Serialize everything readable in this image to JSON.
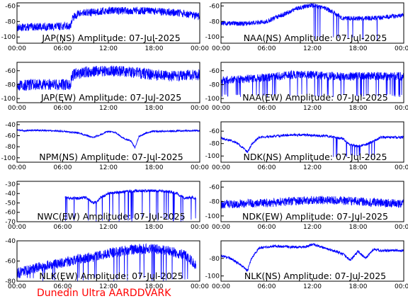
{
  "credit": "Dunedin Ultra AARDDVARK",
  "colors": {
    "trace": "#0000ff",
    "axes": "#000000",
    "credit": "#ff0000",
    "background": "#ffffff"
  },
  "x_ticks": [
    "00:00",
    "06:00",
    "12:00",
    "18:00",
    "00:00"
  ],
  "chart_data": [
    {
      "type": "line",
      "title": "JAP(NS) Amplitude: 07-Jul-2025",
      "x_ticks": [
        "00:00",
        "06:00",
        "12:00",
        "18:00",
        "00:00"
      ],
      "xlim": [
        0,
        24
      ],
      "ylim": [
        -108,
        -56
      ],
      "y_ticks": [
        -100,
        -80,
        -60
      ],
      "series": [
        {
          "x": [
            0,
            2,
            4,
            6,
            7,
            7.3,
            8,
            10,
            12,
            14,
            16,
            18,
            20,
            22,
            24
          ],
          "y": [
            -88,
            -87,
            -87,
            -86,
            -86,
            -76,
            -70,
            -68,
            -66,
            -66,
            -66,
            -67,
            -68,
            -70,
            -74
          ],
          "noise": 5
        }
      ]
    },
    {
      "type": "line",
      "title": "NAA(NS) Amplitude: 07-Jul-2025",
      "x_ticks": [
        "00:00",
        "06:00",
        "12:00",
        "18:00",
        "00:00"
      ],
      "xlim": [
        0,
        24
      ],
      "ylim": [
        -108,
        -56
      ],
      "y_ticks": [
        -100,
        -80,
        -60
      ],
      "series": [
        {
          "x": [
            0,
            2,
            4,
            6,
            8,
            10,
            12,
            14,
            16,
            18,
            20,
            22,
            24
          ],
          "y": [
            -82,
            -83,
            -82,
            -80,
            -72,
            -63,
            -59,
            -64,
            -76,
            -76,
            -76,
            -74,
            -72
          ],
          "noise": 3
        }
      ],
      "dips": {
        "from": 12,
        "to": 21,
        "to_value": -104
      }
    },
    {
      "type": "line",
      "title": "JAP(EW) Amplitude: 07-Jul-2025",
      "x_ticks": [
        "00:00",
        "06:00",
        "12:00",
        "18:00",
        "00:00"
      ],
      "xlim": [
        0,
        24
      ],
      "ylim": [
        -106,
        -48
      ],
      "y_ticks": [
        -100,
        -80,
        -60
      ],
      "series": [
        {
          "x": [
            0,
            2,
            4,
            6,
            7,
            7.3,
            9,
            12,
            15,
            18,
            21,
            22.5,
            24
          ],
          "y": [
            -82,
            -80,
            -80,
            -80,
            -80,
            -66,
            -62,
            -60,
            -62,
            -66,
            -68,
            -66,
            -66
          ],
          "noise": 8
        }
      ]
    },
    {
      "type": "line",
      "title": "NAA(EW) Amplitude: 07-Jul-2025",
      "x_ticks": [
        "00:00",
        "06:00",
        "12:00",
        "18:00",
        "00:00"
      ],
      "xlim": [
        0,
        24
      ],
      "ylim": [
        -106,
        -48
      ],
      "y_ticks": [
        -100,
        -80,
        -60
      ],
      "series": [
        {
          "x": [
            0,
            3,
            6,
            9,
            12,
            15,
            18,
            21,
            24
          ],
          "y": [
            -74,
            -72,
            -70,
            -66,
            -66,
            -68,
            -68,
            -68,
            -68
          ],
          "noise": 6
        }
      ],
      "dips": {
        "from": 0,
        "to": 24,
        "to_value": -98
      }
    },
    {
      "type": "line",
      "title": "NPM(NS) Amplitude: 07-Jul-2025",
      "x_ticks": [
        "00:00",
        "06:00",
        "12:00",
        "18:00",
        "00:00"
      ],
      "xlim": [
        0,
        24
      ],
      "ylim": [
        -108,
        -35
      ],
      "y_ticks": [
        -100,
        -80,
        -60,
        -40
      ],
      "series": [
        {
          "x": [
            0,
            1,
            2,
            4,
            6,
            8,
            10,
            11,
            12,
            13,
            14,
            15,
            15.5,
            16,
            17,
            18,
            20,
            22,
            24
          ],
          "y": [
            -50,
            -51,
            -50,
            -51,
            -52,
            -55,
            -63,
            -58,
            -52,
            -55,
            -65,
            -70,
            -82,
            -62,
            -55,
            -52,
            -52,
            -51,
            -51
          ],
          "noise": 1.5
        }
      ]
    },
    {
      "type": "line",
      "title": "NDK(NS) Amplitude: 07-Jul-2025",
      "x_ticks": [
        "00:00",
        "06:00",
        "12:00",
        "18:00",
        "00:00"
      ],
      "xlim": [
        0,
        24
      ],
      "ylim": [
        -110,
        -45
      ],
      "y_ticks": [
        -100,
        -80,
        -60
      ],
      "series": [
        {
          "x": [
            0,
            1,
            2,
            3,
            3.5,
            4,
            5,
            7,
            9,
            11,
            12,
            14,
            16,
            17,
            18,
            19,
            20,
            21,
            22,
            24
          ],
          "y": [
            -72,
            -74,
            -78,
            -88,
            -94,
            -82,
            -70,
            -68,
            -66,
            -66,
            -67,
            -68,
            -72,
            -82,
            -84,
            -82,
            -76,
            -70,
            -70,
            -70
          ],
          "noise": 2
        }
      ],
      "dips": {
        "from": 13,
        "to": 21,
        "to_value": -102
      }
    },
    {
      "type": "line",
      "title": "NWC(EW) Amplitude: 07-Jul-2025",
      "x_ticks": [
        "00:00",
        "06:00",
        "12:00",
        "18:00",
        "00:00"
      ],
      "xlim": [
        0,
        24
      ],
      "ylim": [
        -70,
        -27
      ],
      "y_ticks": [
        -70,
        -60,
        -50,
        -40,
        -30
      ],
      "series": [
        {
          "x": [
            6.3,
            7,
            8,
            9,
            10,
            10.5,
            11,
            12,
            14,
            16,
            18,
            20,
            21,
            22,
            23,
            23.5
          ],
          "y": [
            -44,
            -45,
            -45,
            -44,
            -50,
            -49,
            -44,
            -40,
            -38,
            -37,
            -37,
            -38,
            -40,
            -45,
            -44,
            -46
          ],
          "noise": 1.5
        }
      ],
      "dips": {
        "from": 6.3,
        "to": 23.5,
        "to_value": -70
      }
    },
    {
      "type": "line",
      "title": "NDK(EW) Amplitude: 07-Jul-2025",
      "x_ticks": [
        "00:00",
        "06:00",
        "12:00",
        "18:00",
        "00:00"
      ],
      "xlim": [
        0,
        24
      ],
      "ylim": [
        -108,
        -52
      ],
      "y_ticks": [
        -100,
        -80,
        -60
      ],
      "series": [
        {
          "x": [
            0,
            3,
            6,
            9,
            12,
            15,
            18,
            21,
            24
          ],
          "y": [
            -84,
            -83,
            -82,
            -80,
            -78,
            -78,
            -80,
            -82,
            -83
          ],
          "noise": 6
        }
      ]
    },
    {
      "type": "line",
      "title": "NLK(EW) Amplitude: 07-Jul-2025",
      "x_ticks": [
        "00:00",
        "06:00",
        "12:00",
        "18:00",
        "00:00"
      ],
      "xlim": [
        0,
        24
      ],
      "ylim": [
        -80,
        -40
      ],
      "y_ticks": [
        -80,
        -60,
        -40
      ],
      "series": [
        {
          "x": [
            0,
            2,
            4,
            6,
            8,
            10,
            12,
            14,
            16,
            18,
            20,
            22,
            23.5
          ],
          "y": [
            -72,
            -68,
            -64,
            -62,
            -58,
            -56,
            -52,
            -50,
            -48,
            -48,
            -50,
            -54,
            -64
          ],
          "noise": 5
        }
      ],
      "dips": {
        "from": 0,
        "to": 24,
        "to_value": -80
      }
    },
    {
      "type": "line",
      "title": "NLK(NS) Amplitude: 07-Jul-2025",
      "x_ticks": [
        "00:00",
        "06:00",
        "12:00",
        "18:00",
        "00:00"
      ],
      "xlim": [
        0,
        24
      ],
      "ylim": [
        -106,
        -60
      ],
      "y_ticks": [
        -100,
        -80
      ],
      "series": [
        {
          "x": [
            0,
            1,
            2,
            3,
            3.5,
            4,
            5,
            7,
            9,
            11,
            12,
            14,
            15,
            16,
            17,
            18,
            19,
            20,
            21,
            22,
            24
          ],
          "y": [
            -77,
            -79,
            -84,
            -90,
            -94,
            -80,
            -68,
            -66,
            -67,
            -67,
            -64,
            -69,
            -72,
            -75,
            -82,
            -72,
            -80,
            -70,
            -71,
            -71,
            -71
          ],
          "noise": 1.5
        }
      ]
    }
  ]
}
